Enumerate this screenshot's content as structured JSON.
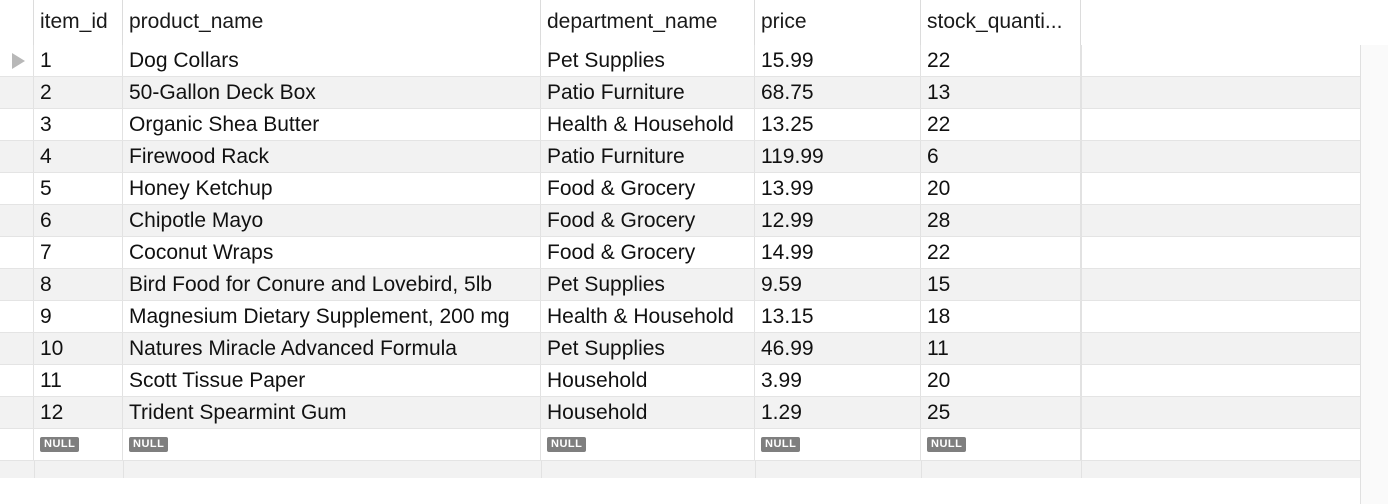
{
  "columns": [
    "item_id",
    "product_name",
    "department_name",
    "price",
    "stock_quanti..."
  ],
  "rows": [
    {
      "item_id": "1",
      "product_name": "Dog Collars",
      "department_name": "Pet Supplies",
      "price": "15.99",
      "stock_quantity": "22"
    },
    {
      "item_id": "2",
      "product_name": "50-Gallon Deck Box",
      "department_name": "Patio Furniture",
      "price": "68.75",
      "stock_quantity": "13"
    },
    {
      "item_id": "3",
      "product_name": "Organic Shea Butter",
      "department_name": "Health & Household",
      "price": "13.25",
      "stock_quantity": "22"
    },
    {
      "item_id": "4",
      "product_name": "Firewood Rack",
      "department_name": "Patio Furniture",
      "price": "119.99",
      "stock_quantity": "6"
    },
    {
      "item_id": "5",
      "product_name": "Honey Ketchup",
      "department_name": "Food & Grocery",
      "price": "13.99",
      "stock_quantity": "20"
    },
    {
      "item_id": "6",
      "product_name": "Chipotle Mayo",
      "department_name": "Food & Grocery",
      "price": "12.99",
      "stock_quantity": "28"
    },
    {
      "item_id": "7",
      "product_name": "Coconut Wraps",
      "department_name": "Food & Grocery",
      "price": "14.99",
      "stock_quantity": "22"
    },
    {
      "item_id": "8",
      "product_name": "Bird Food for Conure and Lovebird, 5lb",
      "department_name": "Pet Supplies",
      "price": "9.59",
      "stock_quantity": "15"
    },
    {
      "item_id": "9",
      "product_name": "Magnesium Dietary Supplement, 200 mg",
      "department_name": "Health & Household",
      "price": "13.15",
      "stock_quantity": "18"
    },
    {
      "item_id": "10",
      "product_name": "Natures Miracle Advanced Formula",
      "department_name": "Pet Supplies",
      "price": "46.99",
      "stock_quantity": "11"
    },
    {
      "item_id": "11",
      "product_name": "Scott Tissue Paper",
      "department_name": "Household",
      "price": "3.99",
      "stock_quantity": "20"
    },
    {
      "item_id": "12",
      "product_name": "Trident Spearmint Gum",
      "department_name": "Household",
      "price": "1.29",
      "stock_quantity": "25"
    }
  ],
  "null_label": "NULL",
  "selected_row_indicator": "triangle-right-icon",
  "colors": {
    "row_alt": "#f2f2f2",
    "null_badge": "#7f7f7f"
  }
}
